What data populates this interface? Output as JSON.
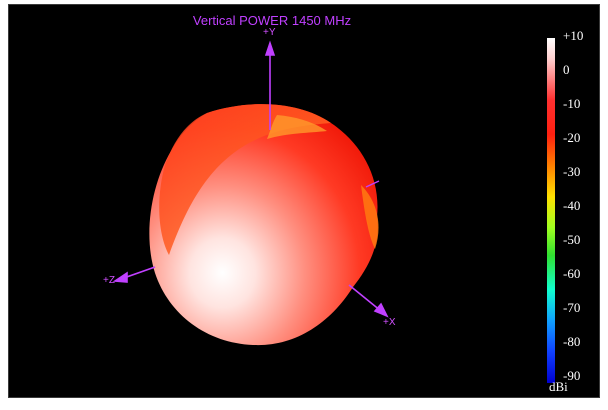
{
  "plot": {
    "title": "Vertical POWER 1450  MHz",
    "axes": {
      "y": "+Y",
      "z": "+Z",
      "x": "+X"
    }
  },
  "legend": {
    "ticks": [
      "+10",
      "0",
      "-10",
      "-20",
      "-30",
      "-40",
      "-50",
      "-60",
      "-70",
      "-80",
      "-90"
    ],
    "unit": "dBi"
  },
  "colors": {
    "background": "#000000",
    "axis": "#c040ff",
    "pattern_high": "#ffffff",
    "pattern_mid": "#ff2a1a"
  },
  "icons": [
    "radiation-pattern-sphere",
    "axis-arrow"
  ]
}
